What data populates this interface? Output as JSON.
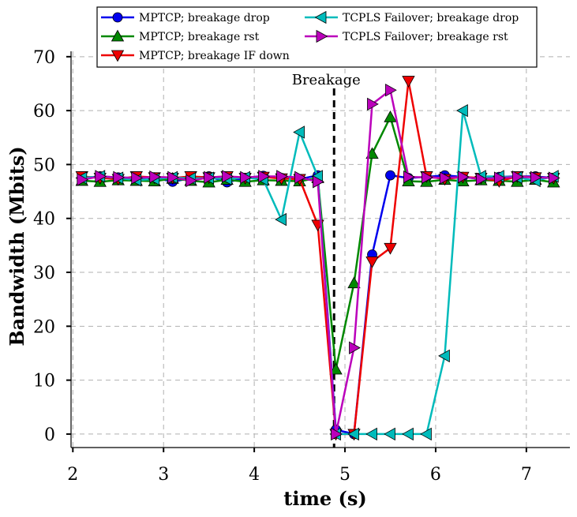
{
  "chart_data": {
    "type": "line",
    "xlabel": "time (s)",
    "ylabel": "Bandwidth (Mbits)",
    "xlim": [
      1.98,
      7.48
    ],
    "ylim": [
      -2.5,
      71
    ],
    "xticks": [
      2,
      3,
      4,
      5,
      6,
      7
    ],
    "yticks": [
      0,
      10,
      20,
      30,
      40,
      50,
      60,
      70
    ],
    "grid": true,
    "legend_position": "top",
    "annotation": {
      "text": "Breakage",
      "x": 4.88
    },
    "series": [
      {
        "name": "MPTCP; breakage drop",
        "color": "#0000ee",
        "marker": "circle",
        "x": [
          2.1,
          2.3,
          2.5,
          2.7,
          2.9,
          3.1,
          3.3,
          3.5,
          3.7,
          3.9,
          4.1,
          4.3,
          4.5,
          4.7,
          4.9,
          5.1,
          5.3,
          5.5,
          5.7,
          5.9,
          6.1,
          6.3,
          6.5,
          6.7,
          6.9,
          7.1,
          7.3
        ],
        "y": [
          47.5,
          47.8,
          47.6,
          47.5,
          47.6,
          46.8,
          47.5,
          47.8,
          46.7,
          47.5,
          47.9,
          47.5,
          47.3,
          48.0,
          0.8,
          0.0,
          33.3,
          48.0,
          47.5,
          47.7,
          48.0,
          47.7,
          47.3,
          47.7,
          47.8,
          47.8,
          47.5
        ]
      },
      {
        "name": "MPTCP; breakage rst",
        "color": "#008800",
        "marker": "triangle-up",
        "x": [
          2.1,
          2.3,
          2.5,
          2.7,
          2.9,
          3.1,
          3.3,
          3.5,
          3.7,
          3.9,
          4.1,
          4.3,
          4.5,
          4.7,
          4.9,
          5.1,
          5.3,
          5.5,
          5.7,
          5.9,
          6.1,
          6.3,
          6.5,
          6.7,
          6.9,
          7.1,
          7.3
        ],
        "y": [
          47.0,
          46.8,
          47.1,
          47.0,
          46.9,
          47.4,
          47.0,
          46.7,
          47.2,
          46.8,
          47.1,
          47.0,
          46.9,
          47.5,
          12.0,
          28.0,
          52.0,
          58.8,
          46.9,
          46.8,
          47.2,
          46.9,
          47.1,
          47.0,
          46.8,
          47.2,
          46.7
        ]
      },
      {
        "name": "MPTCP; breakage IF down",
        "color": "#ee0000",
        "marker": "triangle-down",
        "x": [
          2.1,
          2.3,
          2.5,
          2.7,
          2.9,
          3.1,
          3.3,
          3.5,
          3.7,
          3.9,
          4.1,
          4.3,
          4.5,
          4.7,
          4.9,
          5.1,
          5.3,
          5.5,
          5.7,
          5.9,
          6.1,
          6.3,
          6.5,
          6.7,
          6.9,
          7.1,
          7.3
        ],
        "y": [
          47.8,
          47.5,
          47.3,
          47.8,
          47.6,
          47.5,
          47.8,
          47.6,
          47.8,
          47.5,
          47.7,
          47.4,
          47.3,
          38.8,
          0.0,
          0.0,
          32.0,
          34.5,
          65.5,
          47.8,
          47.3,
          47.7,
          47.5,
          46.9,
          47.8,
          47.6,
          47.5
        ]
      },
      {
        "name": "TCPLS Failover; breakage drop",
        "color": "#00bbbb",
        "marker": "triangle-left",
        "x": [
          2.1,
          2.3,
          2.5,
          2.7,
          2.9,
          3.1,
          3.3,
          3.5,
          3.7,
          3.9,
          4.1,
          4.3,
          4.5,
          4.7,
          4.9,
          5.1,
          5.3,
          5.5,
          5.7,
          5.9,
          6.1,
          6.3,
          6.5,
          6.7,
          6.9,
          7.1,
          7.3
        ],
        "y": [
          47.5,
          47.8,
          47.5,
          47.1,
          47.3,
          47.6,
          47.4,
          47.5,
          47.3,
          47.6,
          47.2,
          39.8,
          56.0,
          47.8,
          0.0,
          0.0,
          0.0,
          0.0,
          0.0,
          0.0,
          14.5,
          60.0,
          47.8,
          47.8,
          47.6,
          47.0,
          47.8
        ]
      },
      {
        "name": "TCPLS Failover; breakage rst",
        "color": "#bb00bb",
        "marker": "triangle-right",
        "x": [
          2.1,
          2.3,
          2.5,
          2.7,
          2.9,
          3.1,
          3.3,
          3.5,
          3.7,
          3.9,
          4.1,
          4.3,
          4.5,
          4.7,
          4.9,
          5.1,
          5.3,
          5.5,
          5.7,
          5.9,
          6.1,
          6.3,
          6.5,
          6.7,
          6.9,
          7.1,
          7.3
        ],
        "y": [
          47.2,
          47.8,
          47.6,
          47.5,
          47.7,
          47.6,
          47.0,
          47.6,
          47.8,
          47.6,
          47.8,
          47.8,
          47.6,
          46.8,
          0.0,
          16.0,
          61.2,
          63.8,
          47.7,
          47.6,
          47.5,
          47.7,
          47.3,
          47.5,
          47.7,
          47.6,
          47.5
        ]
      }
    ]
  }
}
